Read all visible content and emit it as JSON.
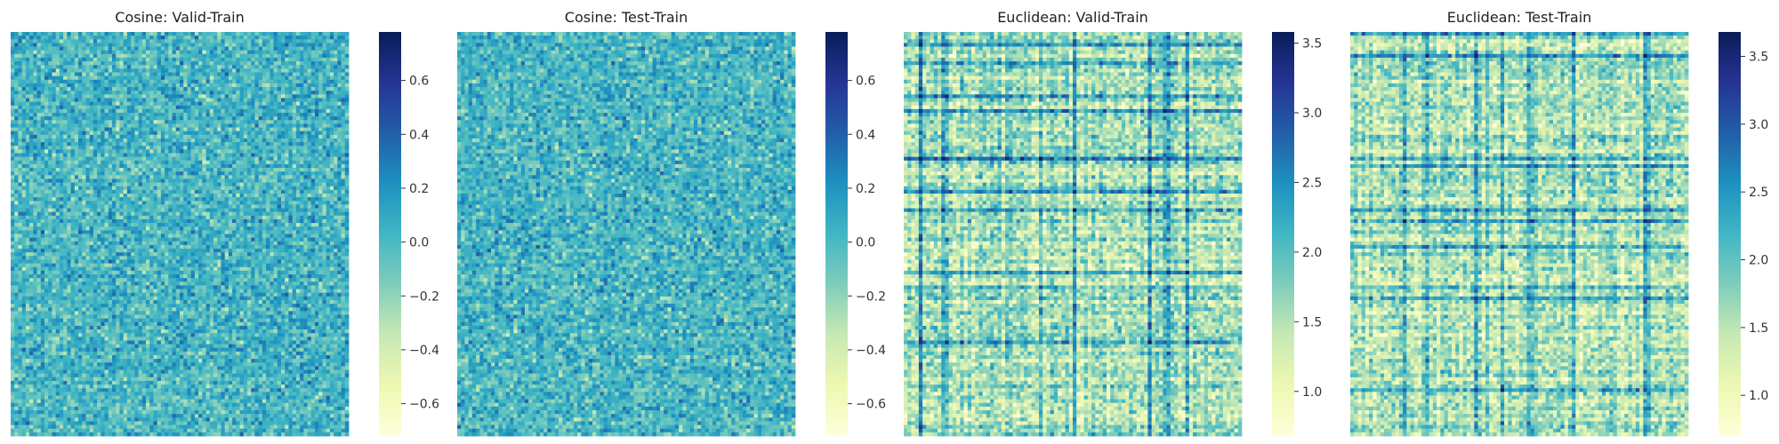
{
  "colors": {
    "scale": [
      "#ffffd9",
      "#edf8b1",
      "#c7e9b4",
      "#7fcdbb",
      "#41b6c4",
      "#1d91c0",
      "#225ea8",
      "#253494",
      "#081d58"
    ]
  },
  "chart_data": [
    {
      "type": "heatmap",
      "title": "Cosine: Valid-Train",
      "xlabel": "",
      "ylabel": "",
      "value_range": [
        -0.72,
        0.78
      ],
      "typical_mean": 0.02,
      "typical_spread": 0.14,
      "grid": false,
      "colorbar": {
        "ticks": [
          0.6,
          0.4,
          0.2,
          0.0,
          -0.2,
          -0.4,
          -0.6
        ],
        "tick_labels": [
          "0.6",
          "0.4",
          "0.2",
          "0.0",
          "−0.2",
          "−0.4",
          "−0.6"
        ]
      }
    },
    {
      "type": "heatmap",
      "title": "Cosine: Test-Train",
      "xlabel": "",
      "ylabel": "",
      "value_range": [
        -0.72,
        0.78
      ],
      "typical_mean": 0.02,
      "typical_spread": 0.14,
      "grid": false,
      "colorbar": {
        "ticks": [
          0.6,
          0.4,
          0.2,
          0.0,
          -0.2,
          -0.4,
          -0.6
        ],
        "tick_labels": [
          "0.6",
          "0.4",
          "0.2",
          "0.0",
          "−0.2",
          "−0.4",
          "−0.6"
        ]
      }
    },
    {
      "type": "heatmap",
      "title": "Euclidean: Valid-Train",
      "xlabel": "",
      "ylabel": "",
      "value_range": [
        0.68,
        3.58
      ],
      "typical_mean": 1.55,
      "typical_spread": 0.3,
      "grid": false,
      "colorbar": {
        "ticks": [
          3.5,
          3.0,
          2.5,
          2.0,
          1.5,
          1.0
        ],
        "tick_labels": [
          "3.5",
          "3.0",
          "2.5",
          "2.0",
          "1.5",
          "1.0"
        ]
      }
    },
    {
      "type": "heatmap",
      "title": "Euclidean: Test-Train",
      "xlabel": "",
      "ylabel": "",
      "value_range": [
        0.7,
        3.68
      ],
      "typical_mean": 1.55,
      "typical_spread": 0.3,
      "grid": false,
      "colorbar": {
        "ticks": [
          3.5,
          3.0,
          2.5,
          2.0,
          1.5,
          1.0
        ],
        "tick_labels": [
          "3.5",
          "3.0",
          "2.5",
          "2.0",
          "1.5",
          "1.0"
        ]
      }
    }
  ]
}
